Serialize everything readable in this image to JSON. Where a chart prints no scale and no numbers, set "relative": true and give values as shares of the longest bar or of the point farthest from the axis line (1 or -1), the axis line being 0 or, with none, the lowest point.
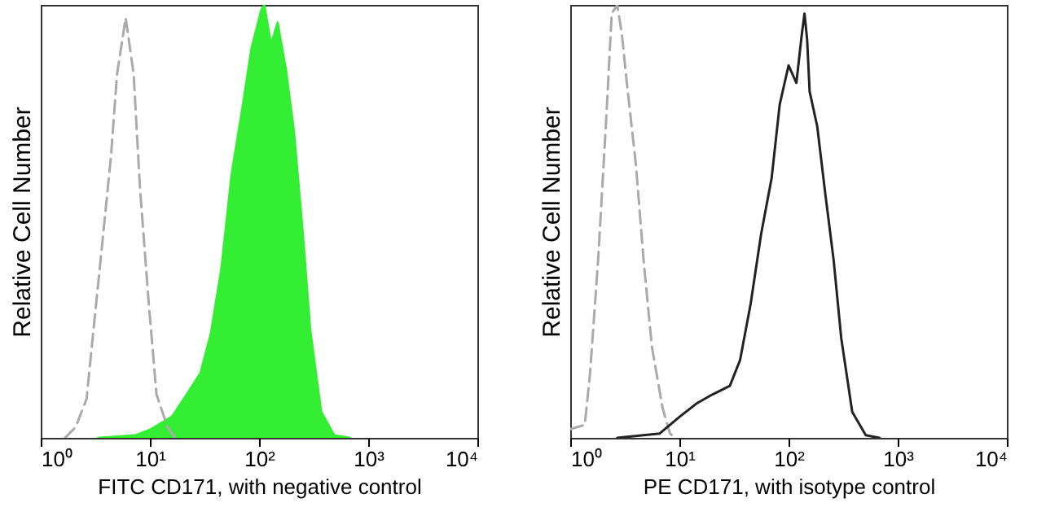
{
  "chart_data": [
    {
      "type": "line",
      "log": "x",
      "relative": true,
      "tick_labels": "x",
      "xlabel": "FITC  CD171, with negative control",
      "ylabel": "Relative Cell Number",
      "xlim": [
        1,
        10000
      ],
      "xticks": [
        {
          "value": 1,
          "label": "10⁰"
        },
        {
          "value": 10,
          "label": "10¹"
        },
        {
          "value": 100,
          "label": "10²"
        },
        {
          "value": 1000,
          "label": "10³"
        },
        {
          "value": 10000,
          "label": "10⁴"
        }
      ],
      "series": [
        {
          "color": "#aaaaaa",
          "line_style": "dashed",
          "x": [
            1.67,
            2.09,
            2.63,
            3.1,
            3.7,
            4.4,
            5.0,
            6.0,
            7.1,
            8.1,
            9.7,
            11.5,
            14.5,
            17
          ],
          "values": [
            0,
            0.025,
            0.09,
            0.27,
            0.46,
            0.65,
            0.84,
            0.97,
            0.84,
            0.58,
            0.32,
            0.1,
            0.025,
            0
          ]
        },
        {
          "type": "area",
          "color": "#33ee33",
          "x": [
            3.3,
            7.3,
            10.2,
            16,
            23,
            29,
            36,
            45,
            56,
            71,
            85,
            105,
            112,
            129,
            148,
            177,
            209,
            251,
            295,
            372,
            490,
            690
          ],
          "values": [
            0,
            0.006,
            0.02,
            0.05,
            0.11,
            0.15,
            0.24,
            0.39,
            0.61,
            0.77,
            0.9,
            0.99,
            1,
            0.91,
            0.96,
            0.85,
            0.71,
            0.48,
            0.25,
            0.06,
            0.006,
            0
          ]
        }
      ]
    },
    {
      "type": "line",
      "log": "x",
      "relative": true,
      "tick_labels": "x",
      "xlabel": "PE CD171,  with isotype control",
      "ylabel": "Relative Cell Number",
      "xlim": [
        1,
        10000
      ],
      "xticks": [
        {
          "value": 1,
          "label": "10⁰"
        },
        {
          "value": 10,
          "label": "10¹"
        },
        {
          "value": 100,
          "label": "10²"
        },
        {
          "value": 1000,
          "label": "10³"
        },
        {
          "value": 10000,
          "label": "10⁴"
        }
      ],
      "series": [
        {
          "color": "#aaaaaa",
          "line_style": "dashed",
          "x": [
            1.0,
            1.36,
            1.52,
            1.8,
            2.13,
            2.4,
            2.7,
            2.98,
            3.3,
            4.0,
            4.7,
            5.6,
            7.0,
            8.2,
            9.2
          ],
          "values": [
            0.02,
            0.03,
            0.15,
            0.41,
            0.73,
            0.98,
            1,
            0.93,
            0.82,
            0.63,
            0.41,
            0.21,
            0.07,
            0.01,
            0
          ]
        },
        {
          "color": "#222222",
          "x": [
            2.7,
            6.6,
            10.2,
            14.5,
            20,
            29,
            36,
            45,
            56,
            70,
            83,
            100,
            118,
            132,
            140,
            148,
            156,
            183,
            218,
            259,
            304,
            383,
            510,
            680
          ],
          "values": [
            0,
            0.01,
            0.05,
            0.08,
            0.1,
            0.12,
            0.18,
            0.31,
            0.47,
            0.6,
            0.77,
            0.86,
            0.82,
            0.93,
            0.98,
            0.92,
            0.8,
            0.72,
            0.56,
            0.41,
            0.23,
            0.06,
            0.006,
            0
          ]
        }
      ]
    }
  ]
}
